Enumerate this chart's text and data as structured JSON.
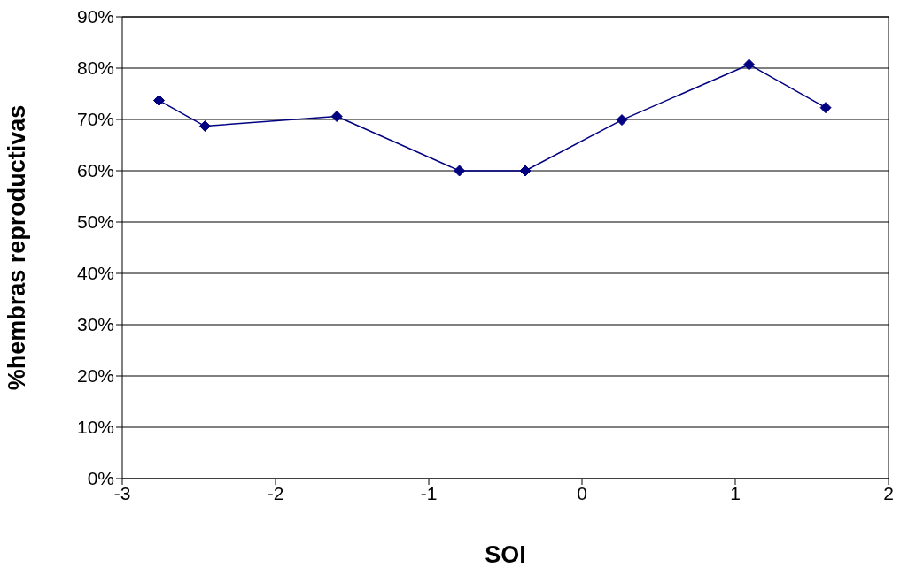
{
  "chart_data": {
    "type": "line",
    "xlabel": "SOI",
    "ylabel": "%hembras reproductivas",
    "x": [
      -2.76,
      -2.46,
      -1.6,
      -0.8,
      -0.37,
      0.26,
      1.09,
      1.59
    ],
    "series": [
      {
        "color": "#000080",
        "values": [
          73.7,
          68.7,
          70.6,
          60,
          60,
          69.9,
          80.7,
          72.3
        ]
      }
    ],
    "xlim": [
      -3,
      2
    ],
    "xticks": [
      -3,
      -2,
      -1,
      0,
      1,
      2
    ],
    "ylim": [
      0,
      90
    ],
    "yticks": [
      {
        "value": 0,
        "label": "0%"
      },
      {
        "value": 10,
        "label": "10%"
      },
      {
        "value": 20,
        "label": "20%"
      },
      {
        "value": 30,
        "label": "30%"
      },
      {
        "value": 40,
        "label": "40%"
      },
      {
        "value": 50,
        "label": "50%"
      },
      {
        "value": 60,
        "label": "60%"
      },
      {
        "value": 70,
        "label": "70%"
      },
      {
        "value": 80,
        "label": "80%"
      },
      {
        "value": 90,
        "label": "90%"
      }
    ],
    "grid": "y",
    "marker": "diamond",
    "line_style": "solid"
  }
}
